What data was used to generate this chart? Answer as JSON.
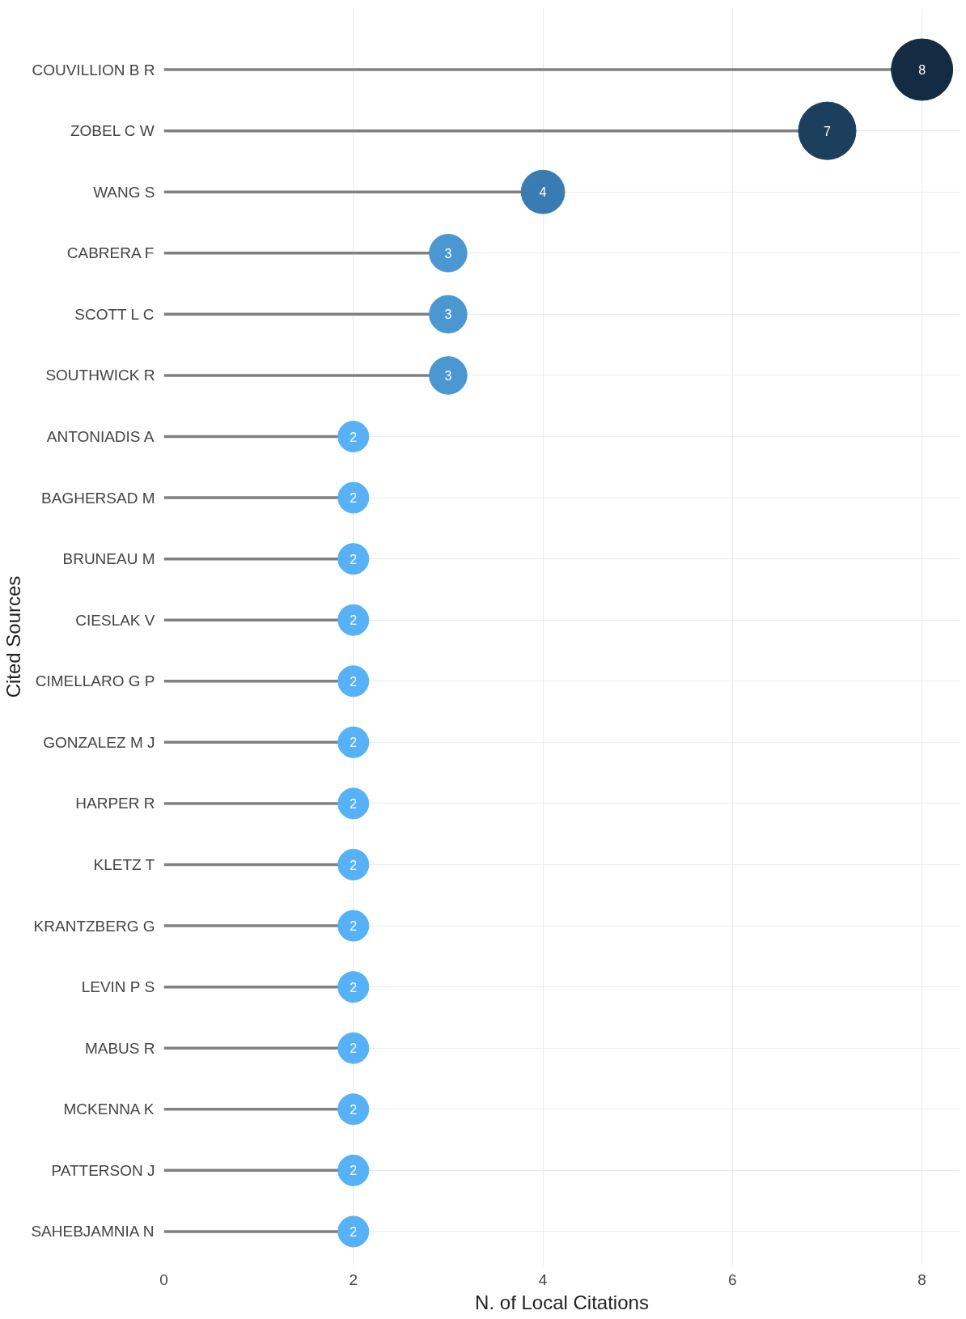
{
  "chart_data": {
    "type": "lollipop",
    "orientation": "horizontal",
    "xlabel": "N. of Local Citations",
    "ylabel": "Cited Sources",
    "categories": [
      "COUVILLION B R",
      "ZOBEL C W",
      "WANG S",
      "CABRERA F",
      "SCOTT L C",
      "SOUTHWICK R",
      "ANTONIADIS A",
      "BAGHERSAD M",
      "BRUNEAU M",
      "CIESLAK V",
      "CIMELLARO G P",
      "GONZALEZ M J",
      "HARPER R",
      "KLETZ T",
      "KRANTZBERG G",
      "LEVIN P S",
      "MABUS R",
      "MCKENNA K",
      "PATTERSON J",
      "SAHEBJAMNIA N"
    ],
    "values": [
      8,
      7,
      4,
      3,
      3,
      3,
      2,
      2,
      2,
      2,
      2,
      2,
      2,
      2,
      2,
      2,
      2,
      2,
      2,
      2
    ],
    "colors": [
      "#132b43",
      "#1d3f5e",
      "#3a7bb1",
      "#4a97d2",
      "#4a97d2",
      "#4a97d2",
      "#56b1f7",
      "#56b1f7",
      "#56b1f7",
      "#56b1f7",
      "#56b1f7",
      "#56b1f7",
      "#56b1f7",
      "#56b1f7",
      "#56b1f7",
      "#56b1f7",
      "#56b1f7",
      "#56b1f7",
      "#56b1f7",
      "#56b1f7"
    ],
    "sizes": [
      1,
      0.875,
      0.5,
      0.375,
      0.375,
      0.375,
      0.25,
      0.25,
      0.25,
      0.25,
      0.25,
      0.25,
      0.25,
      0.25,
      0.25,
      0.25,
      0.25,
      0.25,
      0.25,
      0.25
    ],
    "xlim": [
      0,
      8.4
    ],
    "xticks": [
      0,
      2,
      4,
      6,
      8
    ],
    "grid": true,
    "data_labels": true
  }
}
